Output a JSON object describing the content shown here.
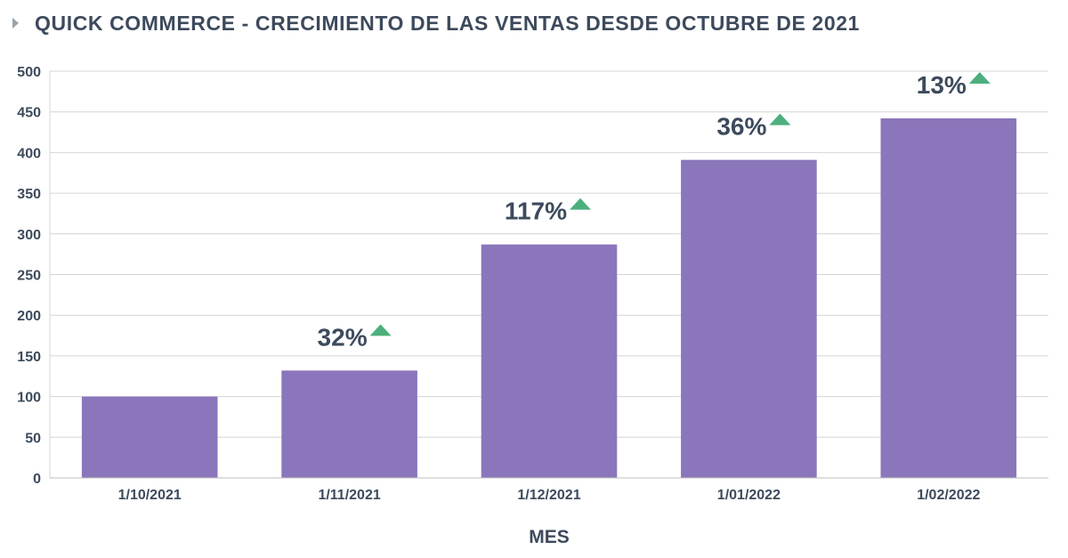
{
  "header": {
    "title": "QUICK COMMERCE - CRECIMIENTO DE LAS VENTAS DESDE OCTUBRE DE 2021"
  },
  "colors": {
    "bar": "#8b76bb",
    "grid": "#d4d4d4",
    "text": "#3d4a5c",
    "up_arrow": "#4caf7d"
  },
  "chart_data": {
    "type": "bar",
    "title": "QUICK COMMERCE - CRECIMIENTO DE LAS VENTAS DESDE OCTUBRE DE 2021",
    "xlabel": "MES",
    "ylabel": "",
    "categories": [
      "1/10/2021",
      "1/11/2021",
      "1/12/2021",
      "1/01/2022",
      "1/02/2022"
    ],
    "values": [
      100,
      132,
      287,
      391,
      442
    ],
    "growth_labels": [
      "",
      "32%",
      "117%",
      "36%",
      "13%"
    ],
    "growth_direction": [
      "",
      "up",
      "up",
      "up",
      "up"
    ],
    "ylim": [
      0,
      500
    ],
    "yticks": [
      0,
      50,
      100,
      150,
      200,
      250,
      300,
      350,
      400,
      450,
      500
    ],
    "grid": true,
    "legend": "none"
  }
}
